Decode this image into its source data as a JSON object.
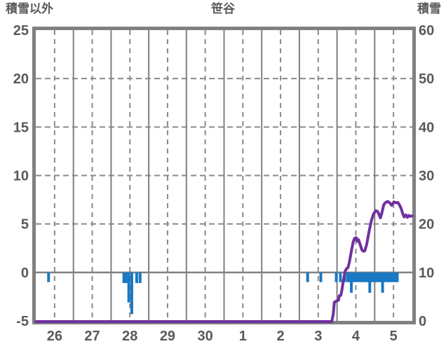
{
  "titles": {
    "left_axis": "積雪以外",
    "chart": "笹谷",
    "right_axis": "積雪"
  },
  "colors": {
    "background": "#ffffff",
    "frame": "#808080",
    "grid_solid": "#808080",
    "grid_dashed": "#8a8a8a",
    "zero_line": "#808080",
    "text": "#595959",
    "snow_depth_line": "#7030a0",
    "non_snow_bar": "#1b78c2"
  },
  "chart_data": {
    "type": "line+bar",
    "title": "笹谷",
    "left_axis": {
      "title": "積雪以外",
      "min": -5,
      "max": 25,
      "ticks": [
        25,
        20,
        15,
        10,
        5,
        0,
        -5
      ]
    },
    "right_axis": {
      "title": "積雪",
      "min": 0,
      "max": 60,
      "ticks": [
        60,
        50,
        40,
        30,
        20,
        10,
        0
      ]
    },
    "x_axis": {
      "days": 10,
      "labels": [
        "26",
        "27",
        "28",
        "29",
        "30",
        "1",
        "2",
        "3",
        "4",
        "5"
      ]
    },
    "grid": {
      "h_dashed_left_values": [
        20,
        15,
        10,
        5
      ],
      "zero_line_left_value": 0,
      "v_solid_at_day_boundaries": true,
      "v_dashed_at_day_centers": true
    },
    "series": [
      {
        "name": "積雪",
        "type": "line",
        "axis": "right",
        "color": "#7030a0",
        "points": [
          [
            0.0,
            0
          ],
          [
            7.86,
            0
          ],
          [
            7.9,
            1.5
          ],
          [
            7.93,
            4.0
          ],
          [
            8.0,
            4.3
          ],
          [
            8.04,
            4.4
          ],
          [
            8.06,
            5.3
          ],
          [
            8.1,
            5.4
          ],
          [
            8.13,
            6.5
          ],
          [
            8.17,
            8.5
          ],
          [
            8.22,
            10.5
          ],
          [
            8.26,
            11.0
          ],
          [
            8.29,
            11.1
          ],
          [
            8.33,
            12.3
          ],
          [
            8.38,
            14.5
          ],
          [
            8.43,
            16.5
          ],
          [
            8.47,
            17.2
          ],
          [
            8.51,
            17.3
          ],
          [
            8.54,
            16.6
          ],
          [
            8.57,
            16.9
          ],
          [
            8.61,
            16.0
          ],
          [
            8.66,
            14.8
          ],
          [
            8.7,
            14.5
          ],
          [
            8.74,
            14.6
          ],
          [
            8.79,
            16.0
          ],
          [
            8.85,
            18.5
          ],
          [
            8.91,
            20.8
          ],
          [
            8.97,
            22.2
          ],
          [
            9.03,
            22.9
          ],
          [
            9.08,
            22.7
          ],
          [
            9.12,
            22.0
          ],
          [
            9.15,
            21.4
          ],
          [
            9.19,
            22.4
          ],
          [
            9.24,
            24.1
          ],
          [
            9.29,
            24.6
          ],
          [
            9.35,
            24.8
          ],
          [
            9.41,
            24.4
          ],
          [
            9.45,
            24.0
          ],
          [
            9.51,
            24.7
          ],
          [
            9.57,
            24.5
          ],
          [
            9.61,
            24.6
          ],
          [
            9.65,
            24.2
          ],
          [
            9.7,
            23.4
          ],
          [
            9.74,
            22.4
          ],
          [
            9.78,
            21.6
          ],
          [
            9.83,
            22.0
          ],
          [
            9.87,
            21.5
          ],
          [
            9.91,
            21.9
          ],
          [
            9.95,
            21.7
          ],
          [
            9.99,
            21.8
          ]
        ]
      },
      {
        "name": "積雪以外",
        "type": "bar",
        "axis": "left",
        "color": "#1b78c2",
        "points": [
          [
            0.34,
            -1.0
          ],
          [
            2.34,
            -1.1
          ],
          [
            2.4,
            -1.1
          ],
          [
            2.47,
            -3.1
          ],
          [
            2.55,
            -4.3
          ],
          [
            2.68,
            -1.1
          ],
          [
            2.77,
            -1.1
          ],
          [
            7.22,
            -1.0
          ],
          [
            7.57,
            -1.0
          ],
          [
            7.98,
            -1.0
          ],
          [
            8.09,
            -1.0
          ],
          [
            8.2,
            -1.0
          ],
          [
            8.28,
            -1.0
          ],
          [
            8.33,
            -1.0
          ],
          [
            8.38,
            -2.1
          ],
          [
            8.44,
            -1.0
          ],
          [
            8.5,
            -1.0
          ],
          [
            8.55,
            -1.0
          ],
          [
            8.61,
            -1.0
          ],
          [
            8.66,
            -1.0
          ],
          [
            8.72,
            -1.0
          ],
          [
            8.77,
            -1.0
          ],
          [
            8.83,
            -1.0
          ],
          [
            8.87,
            -2.1
          ],
          [
            8.93,
            -1.0
          ],
          [
            8.99,
            -1.0
          ],
          [
            9.05,
            -1.0
          ],
          [
            9.1,
            -1.0
          ],
          [
            9.15,
            -1.0
          ],
          [
            9.21,
            -2.1
          ],
          [
            9.26,
            -1.0
          ],
          [
            9.32,
            -1.0
          ],
          [
            9.38,
            -1.0
          ],
          [
            9.43,
            -1.0
          ],
          [
            9.49,
            -1.0
          ],
          [
            9.55,
            -1.0
          ],
          [
            9.6,
            -1.0
          ]
        ]
      }
    ]
  }
}
